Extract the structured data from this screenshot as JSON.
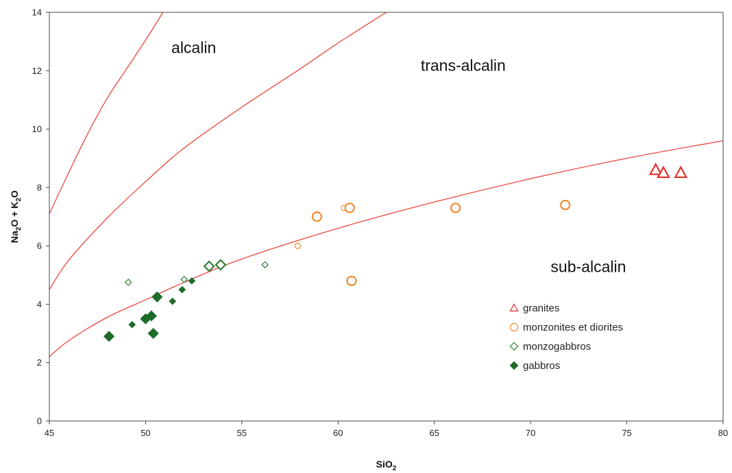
{
  "chart_data": {
    "type": "scatter",
    "xlabel": "SiO",
    "xlabel_sub": "2",
    "ylabel_parts": [
      "Na",
      "2",
      "O + K",
      "2",
      "O"
    ],
    "xlim": [
      45,
      80
    ],
    "ylim": [
      0,
      14
    ],
    "x_ticks": [
      "45",
      "50",
      "55",
      "60",
      "65",
      "70",
      "75",
      "80"
    ],
    "y_ticks": [
      "0",
      "2",
      "4",
      "6",
      "8",
      "10",
      "12",
      "14"
    ],
    "grid": false,
    "legend_position": "lower-right",
    "region_labels": [
      {
        "id": "alcalin",
        "text": "alcalin",
        "x": 52.5,
        "y": 12.6
      },
      {
        "id": "trans-alcalin",
        "text": "trans-alcalin",
        "x": 66.5,
        "y": 12.0
      },
      {
        "id": "sub-alcalin",
        "text": "sub-alcalin",
        "x": 73,
        "y": 5.1
      }
    ],
    "boundary_color": "#e8463c",
    "boundaries": [
      {
        "id": "alcalin-boundary",
        "points": [
          [
            45,
            7.1
          ],
          [
            46,
            8.5
          ],
          [
            47,
            9.85
          ],
          [
            48,
            11.05
          ],
          [
            49,
            12.05
          ],
          [
            50,
            13.05
          ],
          [
            50.9,
            14.0
          ]
        ]
      },
      {
        "id": "trans-alcalin-boundary",
        "points": [
          [
            45,
            4.5
          ],
          [
            46,
            5.5
          ],
          [
            48,
            6.95
          ],
          [
            50,
            8.2
          ],
          [
            52,
            9.35
          ],
          [
            55,
            10.75
          ],
          [
            58,
            12.05
          ],
          [
            60,
            12.95
          ],
          [
            62.5,
            14.0
          ]
        ]
      },
      {
        "id": "sub-alcalin-boundary",
        "points": [
          [
            45,
            2.2
          ],
          [
            46,
            2.75
          ],
          [
            48,
            3.55
          ],
          [
            50,
            4.15
          ],
          [
            52,
            4.75
          ],
          [
            55,
            5.55
          ],
          [
            60,
            6.6
          ],
          [
            65,
            7.5
          ],
          [
            70,
            8.3
          ],
          [
            75,
            9.0
          ],
          [
            80,
            9.6
          ]
        ]
      }
    ],
    "series": [
      {
        "name": "granites",
        "marker": "triangle",
        "fill": "none",
        "color": "#e0332b",
        "points": [
          [
            76.5,
            8.6,
            16
          ],
          [
            76.9,
            8.5,
            16
          ],
          [
            77.8,
            8.5,
            16
          ]
        ]
      },
      {
        "name": "monzonites et diorites",
        "marker": "circle",
        "fill": "none",
        "color": "#f08a2e",
        "points": [
          [
            58.9,
            7.0,
            13
          ],
          [
            60.3,
            7.3,
            8
          ],
          [
            60.6,
            7.3,
            13
          ],
          [
            60.7,
            4.8,
            13
          ],
          [
            66.1,
            7.3,
            13
          ],
          [
            71.8,
            7.4,
            13
          ],
          [
            57.9,
            6.0,
            8
          ]
        ]
      },
      {
        "name": "monzogabbros",
        "marker": "diamond",
        "fill": "none",
        "color": "#2e7d32",
        "points": [
          [
            53.3,
            5.3,
            14
          ],
          [
            53.9,
            5.35,
            14
          ],
          [
            56.2,
            5.35,
            9
          ],
          [
            49.1,
            4.75,
            9
          ],
          [
            52.0,
            4.85,
            9
          ]
        ]
      },
      {
        "name": "gabbros",
        "marker": "diamond",
        "fill": "solid",
        "color": "#1e6b2a",
        "points": [
          [
            48.1,
            2.9,
            13
          ],
          [
            50.0,
            3.5,
            13
          ],
          [
            50.3,
            3.6,
            13
          ],
          [
            50.4,
            3.0,
            13
          ],
          [
            50.6,
            4.25,
            13
          ],
          [
            49.3,
            3.3,
            9
          ],
          [
            51.4,
            4.1,
            9
          ],
          [
            51.9,
            4.5,
            9
          ],
          [
            52.4,
            4.8,
            9
          ]
        ]
      }
    ]
  }
}
